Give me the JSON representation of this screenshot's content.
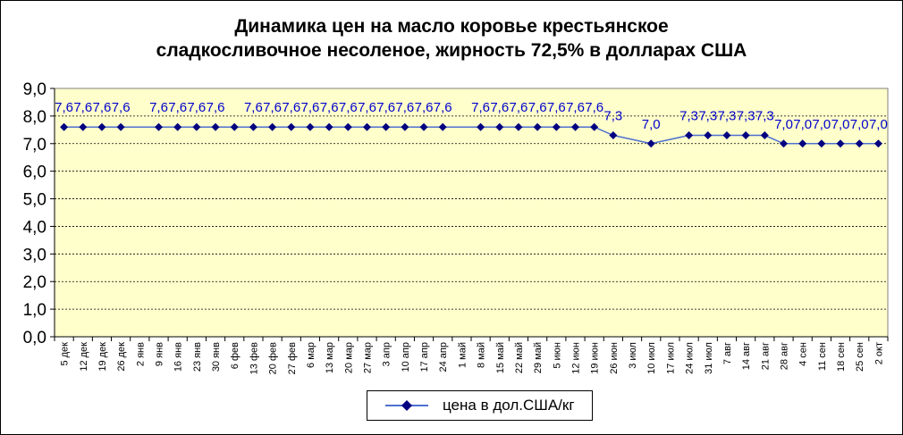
{
  "chart_data": {
    "type": "line",
    "title_line1": "Динамика цен на масло коровье крестьянское",
    "title_line2": "сладкосливочное несоленое, жирность  72,5%  в долларах США",
    "xlabel": "",
    "ylabel": "",
    "ylim": [
      0,
      9
    ],
    "yticks": [
      "0,0",
      "1,0",
      "2,0",
      "3,0",
      "4,0",
      "5,0",
      "6,0",
      "7,0",
      "8,0",
      "9,0"
    ],
    "grid": true,
    "legend_position": "bottom",
    "plot_background": "#ffffcc",
    "series_color": "#000080",
    "line_color": "#4f6fd0",
    "label_color": "#0000cc",
    "categories": [
      "5 дек",
      "12 дек",
      "19 дек",
      "26 дек",
      "2 янв",
      "9 янв",
      "16 янв",
      "23 янв",
      "30 янв",
      "6 фев",
      "13 фев",
      "20 фев",
      "27 фев",
      "6 мар",
      "13 мар",
      "20 мар",
      "27 мар",
      "3 апр",
      "10 апр",
      "17 апр",
      "24 апр",
      "1 май",
      "8 май",
      "15 май",
      "22 май",
      "29 май",
      "5 июн",
      "12 июн",
      "19 июн",
      "26 июн",
      "3 июл",
      "10 июл",
      "17 июл",
      "24 июл",
      "31 июл",
      "7 авг",
      "14 авг",
      "21 авг",
      "28 авг",
      "4 сен",
      "11 сен",
      "18 сен",
      "25 сен",
      "2 окт"
    ],
    "series": [
      {
        "name": "цена в дол.США/кг",
        "values": [
          7.6,
          7.6,
          7.6,
          7.6,
          null,
          7.6,
          7.6,
          7.6,
          7.6,
          7.6,
          7.6,
          7.6,
          7.6,
          7.6,
          7.6,
          7.6,
          7.6,
          7.6,
          7.6,
          7.6,
          7.6,
          null,
          7.6,
          7.6,
          7.6,
          7.6,
          7.6,
          7.6,
          7.6,
          7.3,
          null,
          7.0,
          null,
          7.3,
          7.3,
          7.3,
          7.3,
          7.3,
          7.0,
          7.0,
          7.0,
          7.0,
          7.0,
          7.0
        ],
        "labels": [
          "7,6",
          "7,6",
          "7,6",
          "7,6",
          "",
          "7,6",
          "7,6",
          "7,6",
          "7,6",
          "",
          "7,6",
          "7,6",
          "7,6",
          "7,6",
          "7,6",
          "7,6",
          "7,6",
          "7,6",
          "7,6",
          "7,6",
          "7,6",
          "",
          "7,6",
          "7,6",
          "7,6",
          "7,6",
          "7,6",
          "7,6",
          "7,6",
          "7,3",
          "",
          "7,0",
          "",
          "7,3",
          "7,3",
          "7,3",
          "7,3",
          "7,3",
          "7,0",
          "7,0",
          "7,0",
          "7,0",
          "7,0",
          "7,0"
        ]
      }
    ]
  }
}
